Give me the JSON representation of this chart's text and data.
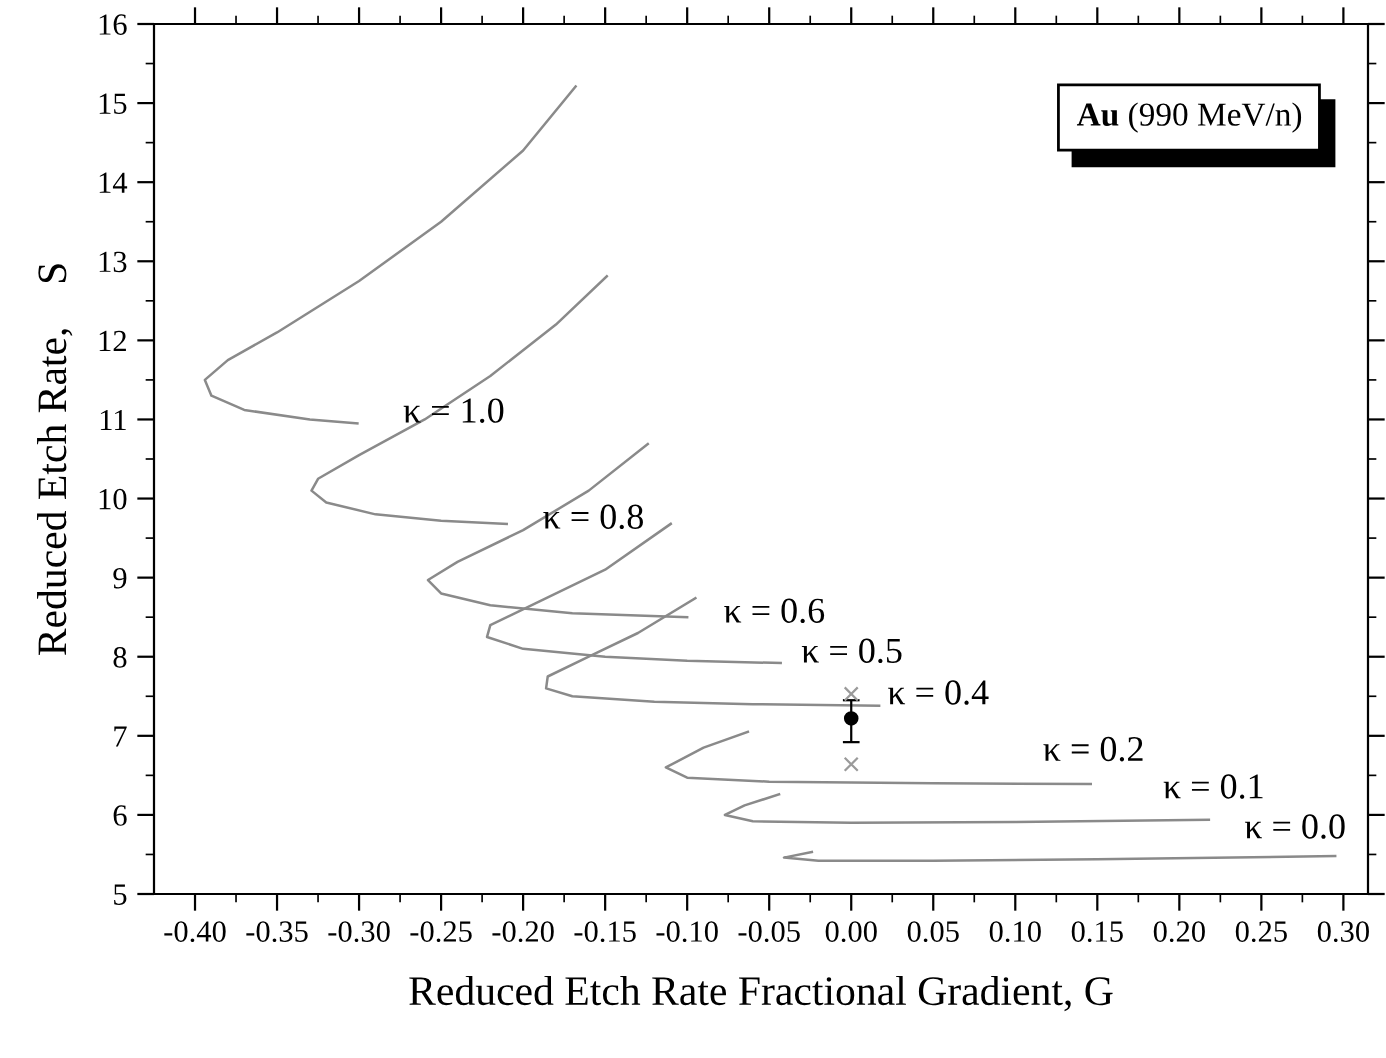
{
  "chart_data": {
    "type": "line",
    "xlabel": "Reduced Etch Rate Fractional Gradient, G",
    "ylabel": "Reduced Etch Rate,    S",
    "xlim": [
      -0.425,
      0.315
    ],
    "ylim": [
      5,
      16
    ],
    "xticks": [
      {
        "value": -0.4,
        "label": "-0.40"
      },
      {
        "value": -0.35,
        "label": "-0.35"
      },
      {
        "value": -0.3,
        "label": "-0.30"
      },
      {
        "value": -0.25,
        "label": "-0.25"
      },
      {
        "value": -0.2,
        "label": "-0.20"
      },
      {
        "value": -0.15,
        "label": "-0.15"
      },
      {
        "value": -0.1,
        "label": "-0.10"
      },
      {
        "value": -0.05,
        "label": "-0.05"
      },
      {
        "value": 0,
        "label": "0.00"
      },
      {
        "value": 0.05,
        "label": "0.05"
      },
      {
        "value": 0.1,
        "label": "0.10"
      },
      {
        "value": 0.15,
        "label": "0.15"
      },
      {
        "value": 0.2,
        "label": "0.20"
      },
      {
        "value": 0.25,
        "label": "0.25"
      },
      {
        "value": 0.3,
        "label": "0.30"
      }
    ],
    "yticks": [
      5,
      6,
      7,
      8,
      9,
      10,
      11,
      12,
      13,
      14,
      15,
      16
    ],
    "grid": false,
    "legend": false,
    "marker": "none",
    "line_style": "solid",
    "series": [
      {
        "color": "#8a8a8a",
        "x": [
          -0.168,
          -0.2,
          -0.25,
          -0.3,
          -0.35,
          -0.38,
          -0.394,
          -0.39,
          -0.37,
          -0.33,
          -0.301
        ],
        "values": [
          15.21,
          14.4,
          13.5,
          12.75,
          12.1,
          11.75,
          11.5,
          11.3,
          11.12,
          11.0,
          10.95
        ]
      },
      {
        "color": "#8a8a8a",
        "x": [
          -0.149,
          -0.18,
          -0.22,
          -0.26,
          -0.3,
          -0.325,
          -0.329,
          -0.32,
          -0.29,
          -0.25,
          -0.21
        ],
        "values": [
          12.81,
          12.2,
          11.55,
          11.0,
          10.55,
          10.25,
          10.1,
          9.95,
          9.8,
          9.72,
          9.68
        ]
      },
      {
        "color": "#8a8a8a",
        "x": [
          -0.124,
          -0.16,
          -0.2,
          -0.24,
          -0.258,
          -0.25,
          -0.22,
          -0.17,
          -0.1
        ],
        "values": [
          10.69,
          10.1,
          9.6,
          9.2,
          8.97,
          8.8,
          8.65,
          8.55,
          8.5
        ]
      },
      {
        "color": "#8a8a8a",
        "x": [
          -0.11,
          -0.15,
          -0.19,
          -0.22,
          -0.222,
          -0.2,
          -0.15,
          -0.1,
          -0.043
        ],
        "values": [
          9.68,
          9.1,
          8.7,
          8.4,
          8.25,
          8.1,
          8.0,
          7.95,
          7.92
        ]
      },
      {
        "color": "#8a8a8a",
        "x": [
          -0.095,
          -0.13,
          -0.16,
          -0.185,
          -0.186,
          -0.17,
          -0.12,
          -0.06,
          0.017
        ],
        "values": [
          8.74,
          8.3,
          8.0,
          7.75,
          7.6,
          7.5,
          7.43,
          7.4,
          7.38
        ]
      },
      {
        "color": "#8a8a8a",
        "x": [
          -0.063,
          -0.09,
          -0.113,
          -0.1,
          -0.05,
          0.05,
          0.146
        ],
        "values": [
          7.05,
          6.85,
          6.6,
          6.47,
          6.42,
          6.4,
          6.39
        ]
      },
      {
        "color": "#8a8a8a",
        "x": [
          -0.044,
          -0.065,
          -0.077,
          -0.06,
          0.0,
          0.1,
          0.218
        ],
        "values": [
          6.26,
          6.12,
          6.0,
          5.92,
          5.9,
          5.91,
          5.94
        ]
      },
      {
        "color": "#8a8a8a",
        "x": [
          -0.024,
          -0.041,
          -0.02,
          0.05,
          0.15,
          0.295
        ],
        "values": [
          5.53,
          5.46,
          5.42,
          5.42,
          5.44,
          5.48
        ]
      },
      {
        "type": "scatter",
        "marker": "circle",
        "color": "#000000",
        "x": [
          0.0
        ],
        "values": [
          7.22
        ],
        "errors": [
          [
            6.92,
            7.45
          ]
        ]
      },
      {
        "type": "scatter",
        "marker": "cross",
        "color": "#9a9a9a",
        "x": [
          0.0,
          0.0
        ],
        "values": [
          7.53,
          6.64
        ]
      }
    ],
    "annotations": [
      "κ = 1.0",
      "κ = 0.8",
      "κ = 0.6",
      "κ = 0.5",
      "κ = 0.4",
      "κ = 0.2",
      "κ = 0.1",
      "κ = 0.0",
      "Au (990 MeV/n)"
    ]
  }
}
